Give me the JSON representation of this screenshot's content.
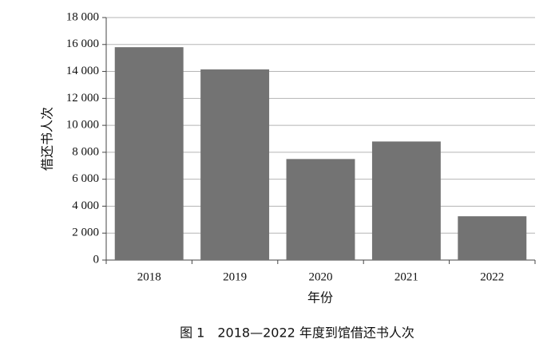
{
  "chart_data": {
    "type": "bar",
    "title": "图 1　2018—2022 年度到馆借还书人次",
    "x_label": "年份",
    "y_label": "借还书人次",
    "categories": [
      "2018",
      "2019",
      "2020",
      "2021",
      "2022"
    ],
    "values": [
      15800,
      14150,
      7500,
      8800,
      3250
    ],
    "color": "#737373",
    "ylim": [
      0,
      18000
    ],
    "yticks": [
      0,
      {
        "value": 2000,
        "label": "2 000"
      },
      {
        "value": 4000,
        "label": "4 000"
      },
      {
        "value": 6000,
        "label": "6 000"
      },
      {
        "value": 8000,
        "label": "8 000"
      },
      {
        "value": 10000,
        "label": "10 000"
      },
      {
        "value": 12000,
        "label": "12 000"
      },
      {
        "value": 14000,
        "label": "14 000"
      },
      {
        "value": 16000,
        "label": "16 000"
      },
      {
        "value": 18000,
        "label": "18 000"
      }
    ],
    "grid": true
  }
}
